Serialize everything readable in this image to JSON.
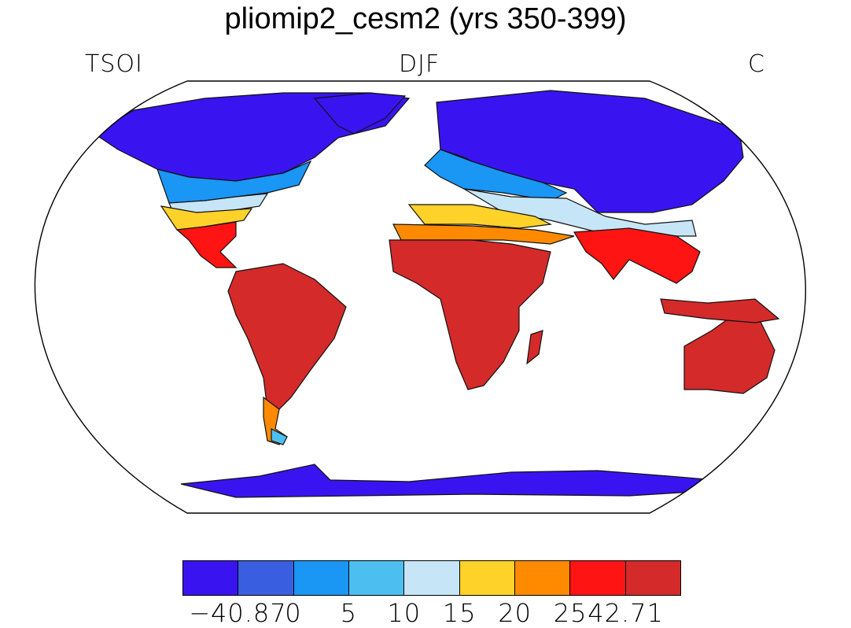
{
  "title": "pliomip2_cesm2 (yrs 350-399)",
  "left_label": "TSOI",
  "center_label": "DJF",
  "right_label": "C",
  "legend": {
    "colors": [
      "#3a14f0",
      "#3a5ee0",
      "#1a96f5",
      "#4cbff0",
      "#c6e6f7",
      "#ffd22a",
      "#ff8a00",
      "#ff1414",
      "#d42a2a"
    ],
    "labels": [
      "−40.87",
      "0",
      "5",
      "10",
      "15",
      "20",
      "25",
      "42.71"
    ]
  }
}
